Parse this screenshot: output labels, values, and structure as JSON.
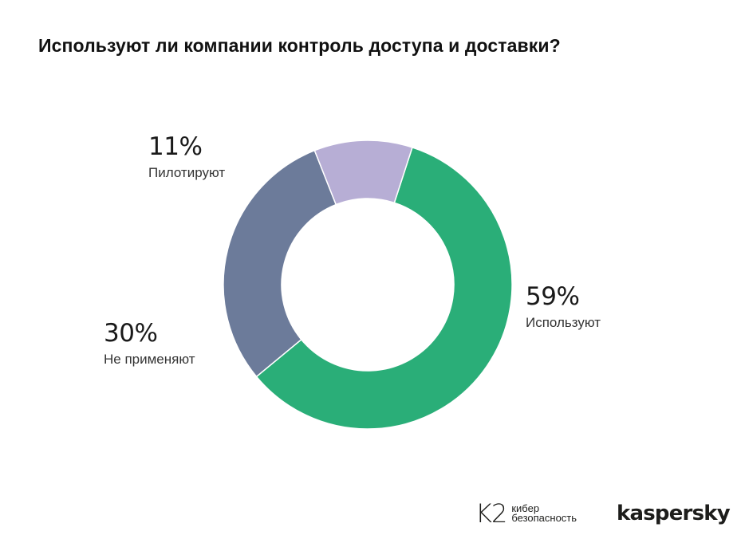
{
  "title": "Используют ли компании контроль доступа и доставки?",
  "chart_data": {
    "type": "pie",
    "categories": [
      "Используют",
      "Не применяют",
      "Пилотируют"
    ],
    "values": [
      59,
      30,
      11
    ],
    "labels": [
      "59%",
      "30%",
      "11%"
    ],
    "colors": [
      "#2aae78",
      "#6c7b9a",
      "#b7aed5"
    ],
    "donut": true
  },
  "logos": {
    "k2_mark": "K2",
    "k2_line1": "кибер",
    "k2_line2": "безопасность",
    "kaspersky": "kaspersky"
  }
}
